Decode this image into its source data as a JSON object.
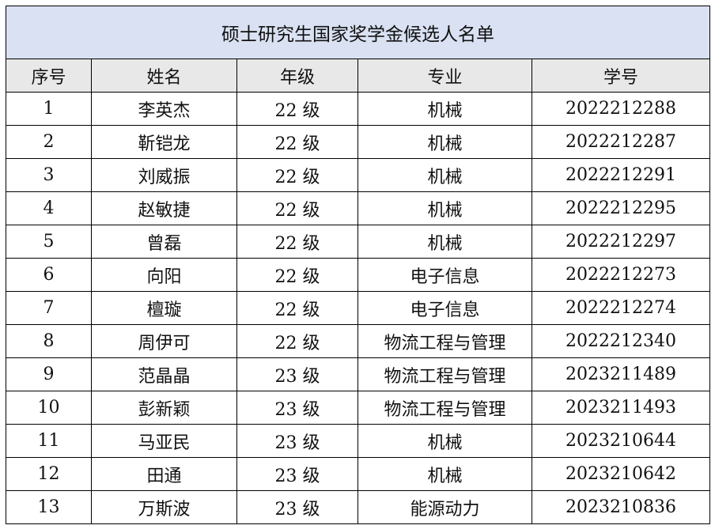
{
  "title": "硕士研究生国家奖学金候选人名单",
  "headers": [
    "序号",
    "姓名",
    "年级",
    "专业",
    "学号"
  ],
  "rows": [
    [
      "1",
      "李英杰",
      "22 级",
      "机械",
      "2022212288"
    ],
    [
      "2",
      "靳铠龙",
      "22 级",
      "机械",
      "2022212287"
    ],
    [
      "3",
      "刘威振",
      "22 级",
      "机械",
      "2022212291"
    ],
    [
      "4",
      "赵敏捷",
      "22 级",
      "机械",
      "2022212295"
    ],
    [
      "5",
      "曾磊",
      "22 级",
      "机械",
      "2022212297"
    ],
    [
      "6",
      "向阳",
      "22 级",
      "电子信息",
      "2022212273"
    ],
    [
      "7",
      "檀璇",
      "22 级",
      "电子信息",
      "2022212274"
    ],
    [
      "8",
      "周伊可",
      "22 级",
      "物流工程与管理",
      "2022212340"
    ],
    [
      "9",
      "范晶晶",
      "23 级",
      "物流工程与管理",
      "2023211489"
    ],
    [
      "10",
      "彭新颖",
      "23 级",
      "物流工程与管理",
      "2023211493"
    ],
    [
      "11",
      "马亚民",
      "23 级",
      "机械",
      "2023210644"
    ],
    [
      "12",
      "田通",
      "23 级",
      "机械",
      "2023210642"
    ],
    [
      "13",
      "万斯波",
      "23 级",
      "能源动力",
      "2023210836"
    ]
  ],
  "colors": {
    "title_bg": "#d9e1f2",
    "header_bg": "#e8e8e8"
  }
}
